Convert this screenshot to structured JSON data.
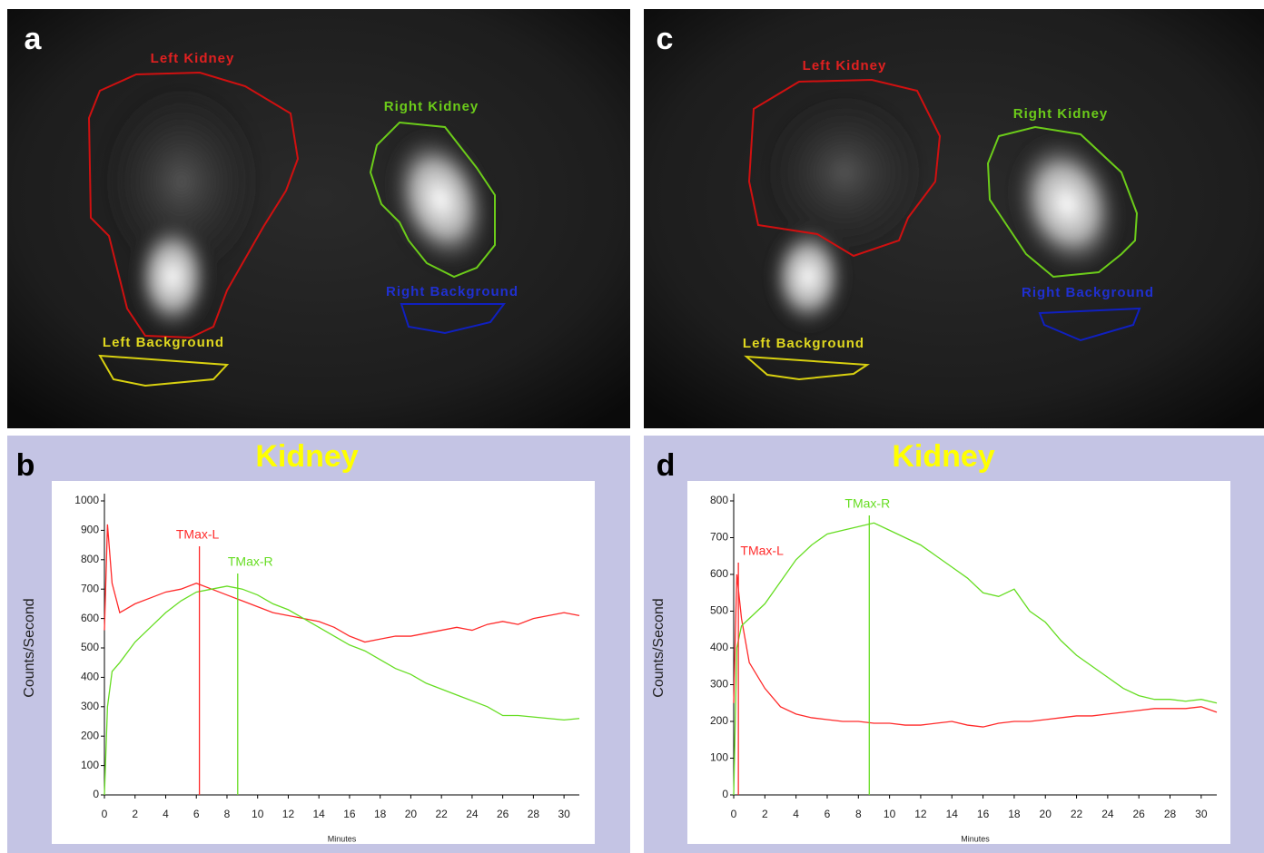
{
  "panels": [
    {
      "letter": "a",
      "rois": [
        "Left Kidney",
        "Right Kidney",
        "Left Background",
        "Right Background"
      ]
    },
    {
      "letter": "c",
      "rois": [
        "Left Kidney",
        "Right Kidney",
        "Left Background",
        "Right Background"
      ]
    }
  ],
  "chart_data": [
    {
      "type": "line",
      "panel_label": "b",
      "title": "Kidney",
      "x_label": "Minutes",
      "y_label": "Counts/Second",
      "xlim": [
        0,
        31
      ],
      "xticks": [
        0,
        2,
        4,
        6,
        8,
        10,
        12,
        14,
        16,
        18,
        20,
        22,
        24,
        26,
        28,
        30
      ],
      "ylim": [
        0,
        1000
      ],
      "yticks": [
        0,
        100,
        200,
        300,
        400,
        500,
        600,
        700,
        800,
        900,
        1000
      ],
      "x": [
        0,
        0.2,
        0.5,
        1,
        2,
        3,
        4,
        5,
        6,
        7,
        8,
        9,
        10,
        11,
        12,
        13,
        14,
        15,
        16,
        17,
        18,
        19,
        20,
        21,
        22,
        23,
        24,
        25,
        26,
        27,
        28,
        29,
        30,
        31
      ],
      "series": [
        {
          "color": "#ff2a2a",
          "values": [
            560,
            920,
            720,
            620,
            650,
            670,
            690,
            700,
            720,
            700,
            680,
            660,
            640,
            620,
            610,
            600,
            590,
            570,
            540,
            520,
            530,
            540,
            540,
            550,
            560,
            570,
            560,
            580,
            590,
            580,
            600,
            610,
            620,
            610
          ]
        },
        {
          "color": "#66dd22",
          "values": [
            0,
            300,
            420,
            450,
            520,
            570,
            620,
            660,
            690,
            700,
            710,
            700,
            680,
            650,
            630,
            600,
            570,
            540,
            510,
            490,
            460,
            430,
            410,
            380,
            360,
            340,
            320,
            300,
            270,
            270,
            265,
            260,
            255,
            260
          ]
        }
      ],
      "markers": [
        {
          "label": "TMax-L",
          "x": 6.2,
          "color": "#ff2a2a"
        },
        {
          "label": "TMax-R",
          "x": 8.7,
          "color": "#66dd22"
        }
      ]
    },
    {
      "type": "line",
      "panel_label": "d",
      "title": "Kidney",
      "x_label": "Minutes",
      "y_label": "Counts/Second",
      "xlim": [
        0,
        31
      ],
      "xticks": [
        0,
        2,
        4,
        6,
        8,
        10,
        12,
        14,
        16,
        18,
        20,
        22,
        24,
        26,
        28,
        30
      ],
      "ylim": [
        0,
        800
      ],
      "yticks": [
        0,
        100,
        200,
        300,
        400,
        500,
        600,
        700,
        800
      ],
      "x": [
        0,
        0.2,
        0.5,
        1,
        2,
        3,
        4,
        5,
        6,
        7,
        8,
        9,
        10,
        11,
        12,
        13,
        14,
        15,
        16,
        17,
        18,
        19,
        20,
        21,
        22,
        23,
        24,
        25,
        26,
        27,
        28,
        29,
        30,
        31
      ],
      "series": [
        {
          "color": "#ff2a2a",
          "values": [
            250,
            600,
            480,
            360,
            290,
            240,
            220,
            210,
            205,
            200,
            200,
            195,
            195,
            190,
            190,
            195,
            200,
            190,
            185,
            195,
            200,
            200,
            205,
            210,
            215,
            215,
            220,
            225,
            230,
            235,
            235,
            235,
            240,
            225
          ]
        },
        {
          "color": "#66dd22",
          "values": [
            0,
            400,
            460,
            480,
            520,
            580,
            640,
            680,
            710,
            720,
            730,
            740,
            720,
            700,
            680,
            650,
            620,
            590,
            550,
            540,
            560,
            500,
            470,
            420,
            380,
            350,
            320,
            290,
            270,
            260,
            260,
            255,
            260,
            250
          ]
        }
      ],
      "markers": [
        {
          "label": "TMax-L",
          "x": 0.3,
          "color": "#ff2a2a"
        },
        {
          "label": "TMax-R",
          "x": 8.7,
          "color": "#66dd22"
        }
      ]
    }
  ]
}
